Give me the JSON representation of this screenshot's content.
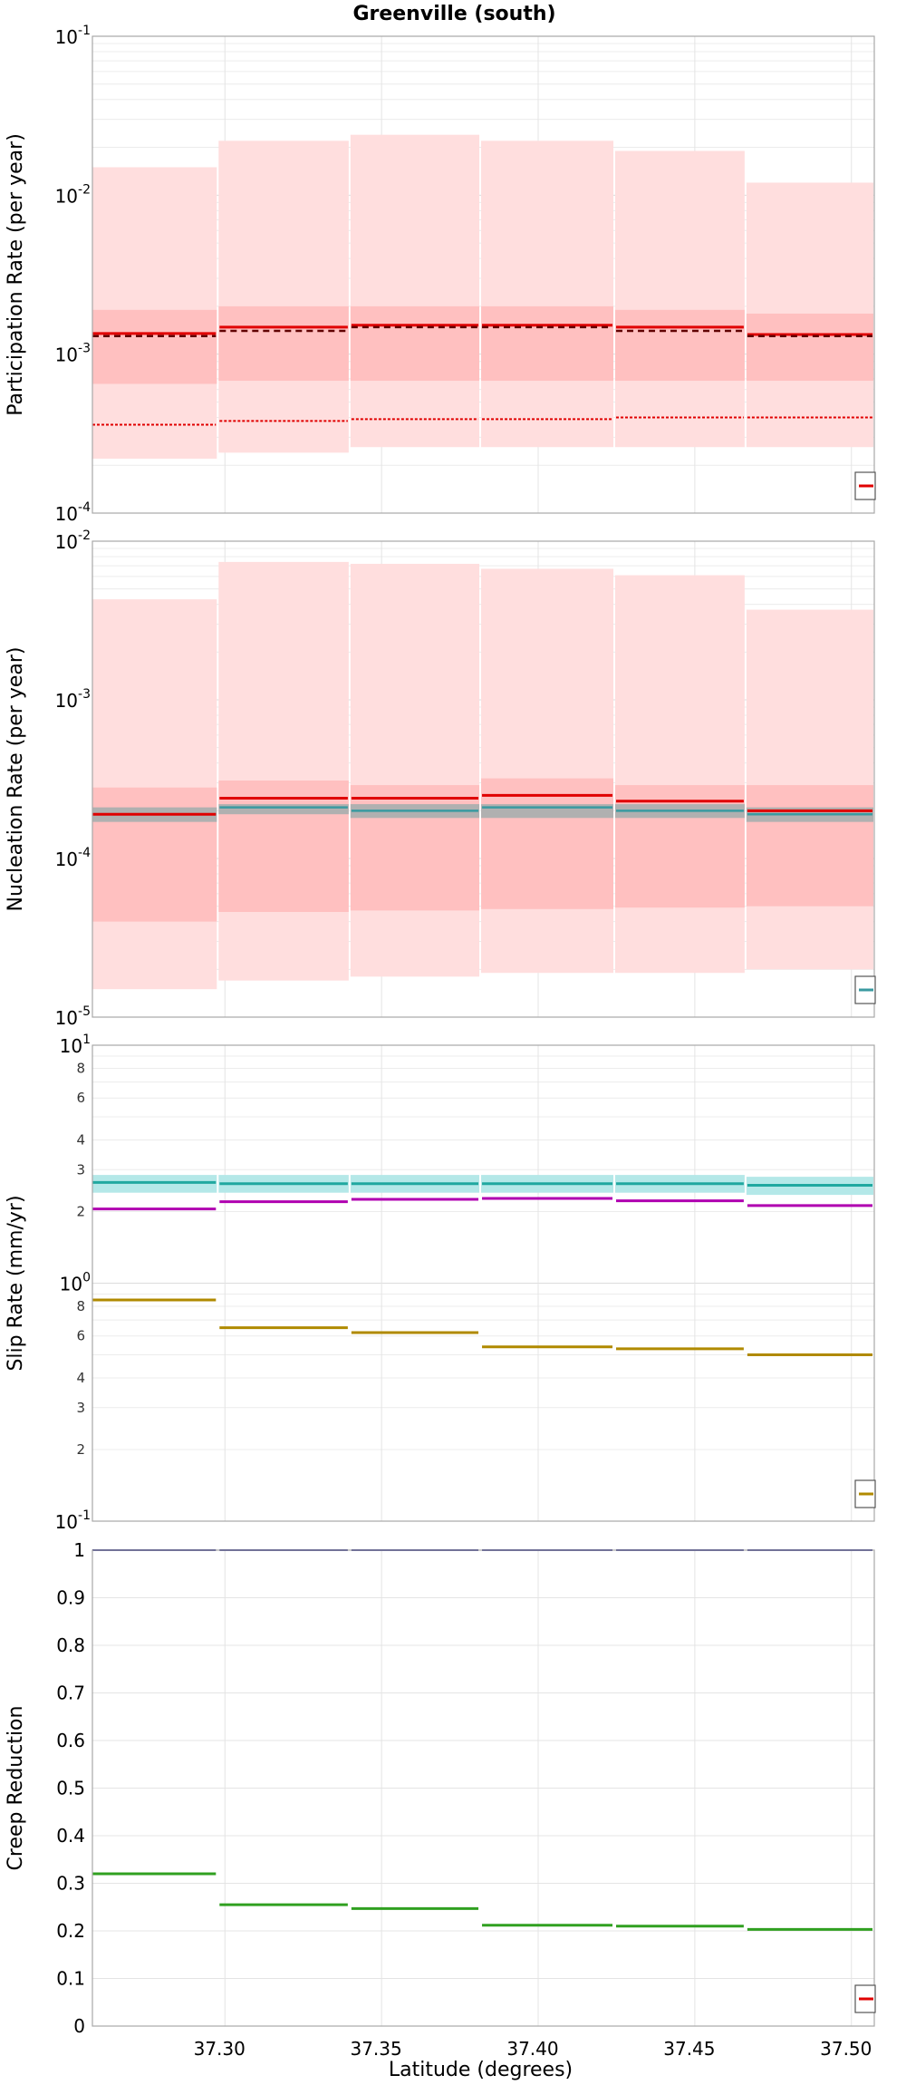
{
  "title": "Greenville (south)",
  "xlabel": "Latitude (degrees)",
  "colors": {
    "participation": "#e00000",
    "nucleation": "#e00000",
    "nucleation_alt": "#3a9aa0",
    "slip_target": "#20a8a0",
    "slip_mid": "#b000b0",
    "slip_low": "#b08a00",
    "creep": "#30a020",
    "creep_line": "#202080",
    "band_outer": "#ffdede",
    "band_inner": "#ffc0c0",
    "band_gray": "#b0b0b0",
    "band_cyan": "#b4e8e8"
  },
  "chart_data": [
    {
      "type": "line",
      "step": true,
      "ylabel": "Participation Rate (per year)",
      "yscale": "log",
      "ylim": [
        0.0001,
        0.1
      ],
      "xlim": [
        37.2577,
        37.5073
      ],
      "xticks": [
        "37.30",
        "37.35",
        "37.40",
        "37.45",
        "37.50"
      ],
      "bins": [
        [
          37.2577,
          37.2977
        ],
        [
          37.2977,
          37.3398
        ],
        [
          37.3398,
          37.3815
        ],
        [
          37.3815,
          37.4243
        ],
        [
          37.4243,
          37.4662
        ],
        [
          37.4662,
          37.5073
        ]
      ],
      "series": [
        {
          "values": [
            0.00135,
            0.00148,
            0.00152,
            0.00152,
            0.00148,
            0.00133
          ]
        },
        {
          "values": [
            0.0013,
            0.0014,
            0.00148,
            0.00148,
            0.0014,
            0.0013
          ]
        },
        {
          "values": [
            0.00036,
            0.00038,
            0.00039,
            0.00039,
            0.0004,
            0.0004
          ]
        }
      ],
      "bands": [
        {
          "low": [
            0.00022,
            0.00024,
            0.00026,
            0.00026,
            0.00026,
            0.00026
          ],
          "high": [
            0.015,
            0.022,
            0.024,
            0.022,
            0.019,
            0.012
          ]
        },
        {
          "low": [
            0.00065,
            0.00068,
            0.00068,
            0.00068,
            0.00068,
            0.00068
          ],
          "high": [
            0.0019,
            0.002,
            0.002,
            0.002,
            0.0019,
            0.0018
          ]
        }
      ]
    },
    {
      "type": "line",
      "step": true,
      "ylabel": "Nucleation Rate (per year)",
      "yscale": "log",
      "ylim": [
        1e-05,
        0.01
      ],
      "series": [
        {
          "values": [
            0.00019,
            0.00024,
            0.00024,
            0.00025,
            0.00023,
            0.0002
          ]
        },
        {
          "values": [
            0.00019,
            0.00021,
            0.0002,
            0.00021,
            0.0002,
            0.00019
          ]
        }
      ],
      "bands": [
        {
          "low": [
            1.5e-05,
            1.7e-05,
            1.8e-05,
            1.9e-05,
            1.9e-05,
            2e-05
          ],
          "high": [
            0.0043,
            0.0074,
            0.0072,
            0.0067,
            0.0061,
            0.0037
          ]
        },
        {
          "low": [
            4e-05,
            4.6e-05,
            4.7e-05,
            4.8e-05,
            4.9e-05,
            5e-05
          ],
          "high": [
            0.00028,
            0.00031,
            0.00029,
            0.00032,
            0.00029,
            0.00029
          ]
        },
        {
          "low": [
            0.00017,
            0.00019,
            0.00018,
            0.00018,
            0.00018,
            0.00017
          ],
          "high": [
            0.00021,
            0.00022,
            0.00022,
            0.00022,
            0.00022,
            0.00021
          ]
        }
      ]
    },
    {
      "type": "line",
      "step": true,
      "ylabel": "Slip Rate (mm/yr)",
      "yscale": "log",
      "ylim": [
        0.1,
        10
      ],
      "series": [
        {
          "values": [
            2.65,
            2.62,
            2.62,
            2.62,
            2.62,
            2.58
          ]
        },
        {
          "values": [
            2.05,
            2.2,
            2.25,
            2.27,
            2.22,
            2.12
          ]
        },
        {
          "values": [
            0.85,
            0.65,
            0.62,
            0.54,
            0.53,
            0.5
          ]
        }
      ],
      "bands": [
        {
          "low": [
            2.4,
            2.4,
            2.4,
            2.4,
            2.4,
            2.35
          ],
          "high": [
            2.85,
            2.85,
            2.85,
            2.85,
            2.85,
            2.8
          ]
        }
      ]
    },
    {
      "type": "line",
      "step": true,
      "ylabel": "Creep Reduction",
      "yscale": "linear",
      "ylim": [
        0,
        1
      ],
      "yticks": [
        "0",
        "0.1",
        "0.2",
        "0.3",
        "0.4",
        "0.5",
        "0.6",
        "0.7",
        "0.8",
        "0.9",
        "1"
      ],
      "series": [
        {
          "values": [
            1,
            1,
            1,
            1,
            1,
            1
          ]
        },
        {
          "values": [
            0.32,
            0.255,
            0.247,
            0.212,
            0.21,
            0.203
          ]
        }
      ]
    }
  ]
}
